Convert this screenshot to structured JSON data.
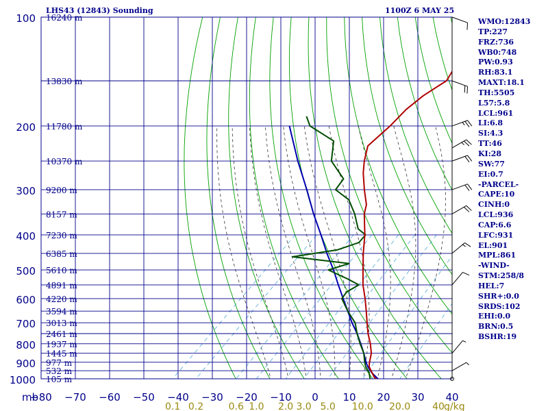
{
  "header": {
    "title_left": "LHS43 (12843) Sounding",
    "title_right": "1100Z  6 MAY 25"
  },
  "stats": [
    "WMO:12843",
    "TP:227",
    "FRZ:736",
    "WB0:748",
    "PW:0.93",
    "RH:83.1",
    "MAXT:18.1",
    "TH:5505",
    "L57:5.8",
    "LCL:961",
    "LI:6.8",
    "SI:4.3",
    "TT:46",
    "KI:28",
    "SW:77",
    "EI:0.7",
    "-PARCEL-",
    "CAPE:10",
    "CINH:0",
    "LCL:936",
    "CAP:6.6",
    "LFC:931",
    "EL:901",
    "MPL:861",
    "-WIND-",
    "STM:258/8",
    "HEL:7",
    "SHR+:0.0",
    "SRDS:102",
    "EHI:0.0",
    "BRN:0.5",
    "BSHR:19"
  ],
  "colors": {
    "background": "#ffffff",
    "grid": "#00008b",
    "dry_adiabat": "#00a000",
    "moist_adiabat": "#333333",
    "mixing_ratio": "#4fa8d8",
    "temperature": "#b00000",
    "dewpoint": "#004d00",
    "parcel": "#0000b0",
    "text": "#00008b"
  },
  "chart_data": {
    "type": "skew-t",
    "x_unit_label": "mb",
    "pressure_range": [
      100,
      1000
    ],
    "pressure_ticks": [
      100,
      200,
      300,
      400,
      500,
      600,
      700,
      800,
      900,
      1000
    ],
    "temperature_range": [
      -80,
      40
    ],
    "temperature_ticks": [
      -80,
      -70,
      -60,
      -50,
      -40,
      -30,
      -20,
      -10,
      0,
      10,
      20,
      30,
      40
    ],
    "mixing_ratio_unit": "g/kg",
    "mixing_ratio_labels": [
      "0.1",
      "0.2",
      "0.6",
      "1.0",
      "2.0",
      "3.0",
      "5.0",
      "10.0",
      "20.0",
      "40"
    ],
    "height_labels": [
      {
        "p": 100,
        "label": "16240 m"
      },
      {
        "p": 150,
        "label": "13830 m"
      },
      {
        "p": 200,
        "label": "11780 m"
      },
      {
        "p": 250,
        "label": "10370 m"
      },
      {
        "p": 300,
        "label": "9200 m"
      },
      {
        "p": 350,
        "label": "8157 m"
      },
      {
        "p": 400,
        "label": "7230 m"
      },
      {
        "p": 450,
        "label": "6385 m"
      },
      {
        "p": 500,
        "label": "5610 m"
      },
      {
        "p": 550,
        "label": "4891 m"
      },
      {
        "p": 600,
        "label": "4220 m"
      },
      {
        "p": 650,
        "label": "3594 m"
      },
      {
        "p": 700,
        "label": "3013 m"
      },
      {
        "p": 750,
        "label": "2461 m"
      },
      {
        "p": 800,
        "label": "1937 m"
      },
      {
        "p": 850,
        "label": "1445 m"
      },
      {
        "p": 900,
        "label": "977 m"
      },
      {
        "p": 950,
        "label": "532 m"
      },
      {
        "p": 1000,
        "label": "105 m"
      }
    ],
    "dry_adiabats_theta_k": [
      250,
      260,
      270,
      280,
      290,
      300,
      310,
      320,
      330,
      340,
      350,
      360,
      370,
      380,
      390,
      400,
      410,
      420,
      430,
      440,
      450,
      460,
      470,
      480,
      490,
      500
    ],
    "moist_adiabats_c": [
      -10,
      -5,
      0,
      4,
      8,
      12,
      16,
      20,
      24,
      28
    ],
    "mixing_ratio_lines_gkg": [
      0.1,
      0.2,
      0.6,
      1.0,
      2.0,
      3.0,
      5.0,
      10.0,
      20.0
    ],
    "temperature": [
      {
        "p": 1013,
        "t": 19.2
      },
      {
        "p": 990,
        "t": 16.8
      },
      {
        "p": 960,
        "t": 14.6
      },
      {
        "p": 925,
        "t": 12.0
      },
      {
        "p": 900,
        "t": 10.8
      },
      {
        "p": 850,
        "t": 8.6
      },
      {
        "p": 800,
        "t": 5.4
      },
      {
        "p": 750,
        "t": 1.6
      },
      {
        "p": 700,
        "t": -2.0
      },
      {
        "p": 650,
        "t": -5.8
      },
      {
        "p": 600,
        "t": -10.0
      },
      {
        "p": 550,
        "t": -14.8
      },
      {
        "p": 500,
        "t": -19.4
      },
      {
        "p": 450,
        "t": -24.4
      },
      {
        "p": 400,
        "t": -29.6
      },
      {
        "p": 350,
        "t": -36.2
      },
      {
        "p": 330,
        "t": -38.4
      },
      {
        "p": 300,
        "t": -43.6
      },
      {
        "p": 270,
        "t": -49.0
      },
      {
        "p": 250,
        "t": -52.4
      },
      {
        "p": 227,
        "t": -56.0
      },
      {
        "p": 200,
        "t": -55.6
      },
      {
        "p": 180,
        "t": -56.0
      },
      {
        "p": 165,
        "t": -55.2
      },
      {
        "p": 155,
        "t": -53.8
      },
      {
        "p": 150,
        "t": -53.0
      },
      {
        "p": 140,
        "t": -54.4
      },
      {
        "p": 130,
        "t": -55.6
      },
      {
        "p": 120,
        "t": -57.0
      },
      {
        "p": 110,
        "t": -57.6
      },
      {
        "p": 100,
        "t": -58.0
      }
    ],
    "dewpoint": [
      {
        "p": 1013,
        "t": 16.8
      },
      {
        "p": 990,
        "t": 15.5
      },
      {
        "p": 960,
        "t": 13.8
      },
      {
        "p": 925,
        "t": 11.0
      },
      {
        "p": 900,
        "t": 9.4
      },
      {
        "p": 850,
        "t": 6.4
      },
      {
        "p": 800,
        "t": 2.4
      },
      {
        "p": 750,
        "t": -1.6
      },
      {
        "p": 700,
        "t": -5.5
      },
      {
        "p": 650,
        "t": -11.2
      },
      {
        "p": 600,
        "t": -16.8
      },
      {
        "p": 575,
        "t": -17.4
      },
      {
        "p": 550,
        "t": -16.0
      },
      {
        "p": 530,
        "t": -21.0
      },
      {
        "p": 500,
        "t": -29.5
      },
      {
        "p": 480,
        "t": -25.4
      },
      {
        "p": 460,
        "t": -44.0
      },
      {
        "p": 440,
        "t": -33.0
      },
      {
        "p": 420,
        "t": -29.0
      },
      {
        "p": 400,
        "t": -29.4
      },
      {
        "p": 385,
        "t": -33.4
      },
      {
        "p": 350,
        "t": -39.0
      },
      {
        "p": 320,
        "t": -45.0
      },
      {
        "p": 300,
        "t": -52.0
      },
      {
        "p": 280,
        "t": -53.0
      },
      {
        "p": 250,
        "t": -62.0
      },
      {
        "p": 220,
        "t": -67.5
      },
      {
        "p": 200,
        "t": -79.0
      },
      {
        "p": 188,
        "t": -83.0
      }
    ],
    "parcel": [
      {
        "p": 1013,
        "t": 19.6
      },
      {
        "p": 990,
        "t": 17.4
      },
      {
        "p": 961,
        "t": 14.6
      },
      {
        "p": 925,
        "t": 11.6
      },
      {
        "p": 900,
        "t": 9.8
      },
      {
        "p": 850,
        "t": 6.4
      },
      {
        "p": 800,
        "t": 2.6
      },
      {
        "p": 750,
        "t": -1.6
      },
      {
        "p": 700,
        "t": -6.4
      },
      {
        "p": 650,
        "t": -11.2
      },
      {
        "p": 600,
        "t": -16.4
      },
      {
        "p": 550,
        "t": -22.0
      },
      {
        "p": 500,
        "t": -28.0
      },
      {
        "p": 450,
        "t": -35.0
      },
      {
        "p": 400,
        "t": -42.4
      },
      {
        "p": 350,
        "t": -51.0
      },
      {
        "p": 300,
        "t": -60.4
      },
      {
        "p": 250,
        "t": -71.8
      },
      {
        "p": 200,
        "t": -85.0
      }
    ],
    "wind_barbs": [
      {
        "p": 1000,
        "dir": 270,
        "kt": 0
      },
      {
        "p": 950,
        "dir": 60,
        "kt": 5
      },
      {
        "p": 850,
        "dir": 40,
        "kt": 5
      },
      {
        "p": 550,
        "dir": 40,
        "kt": 10
      },
      {
        "p": 450,
        "dir": 50,
        "kt": 15
      },
      {
        "p": 350,
        "dir": 60,
        "kt": 20
      },
      {
        "p": 300,
        "dir": 70,
        "kt": 20
      },
      {
        "p": 250,
        "dir": 70,
        "kt": 20
      },
      {
        "p": 230,
        "dir": 60,
        "kt": 25
      },
      {
        "p": 200,
        "dir": 70,
        "kt": 25
      },
      {
        "p": 150,
        "dir": 110,
        "kt": 20
      },
      {
        "p": 100,
        "dir": 110,
        "kt": 10
      }
    ]
  }
}
